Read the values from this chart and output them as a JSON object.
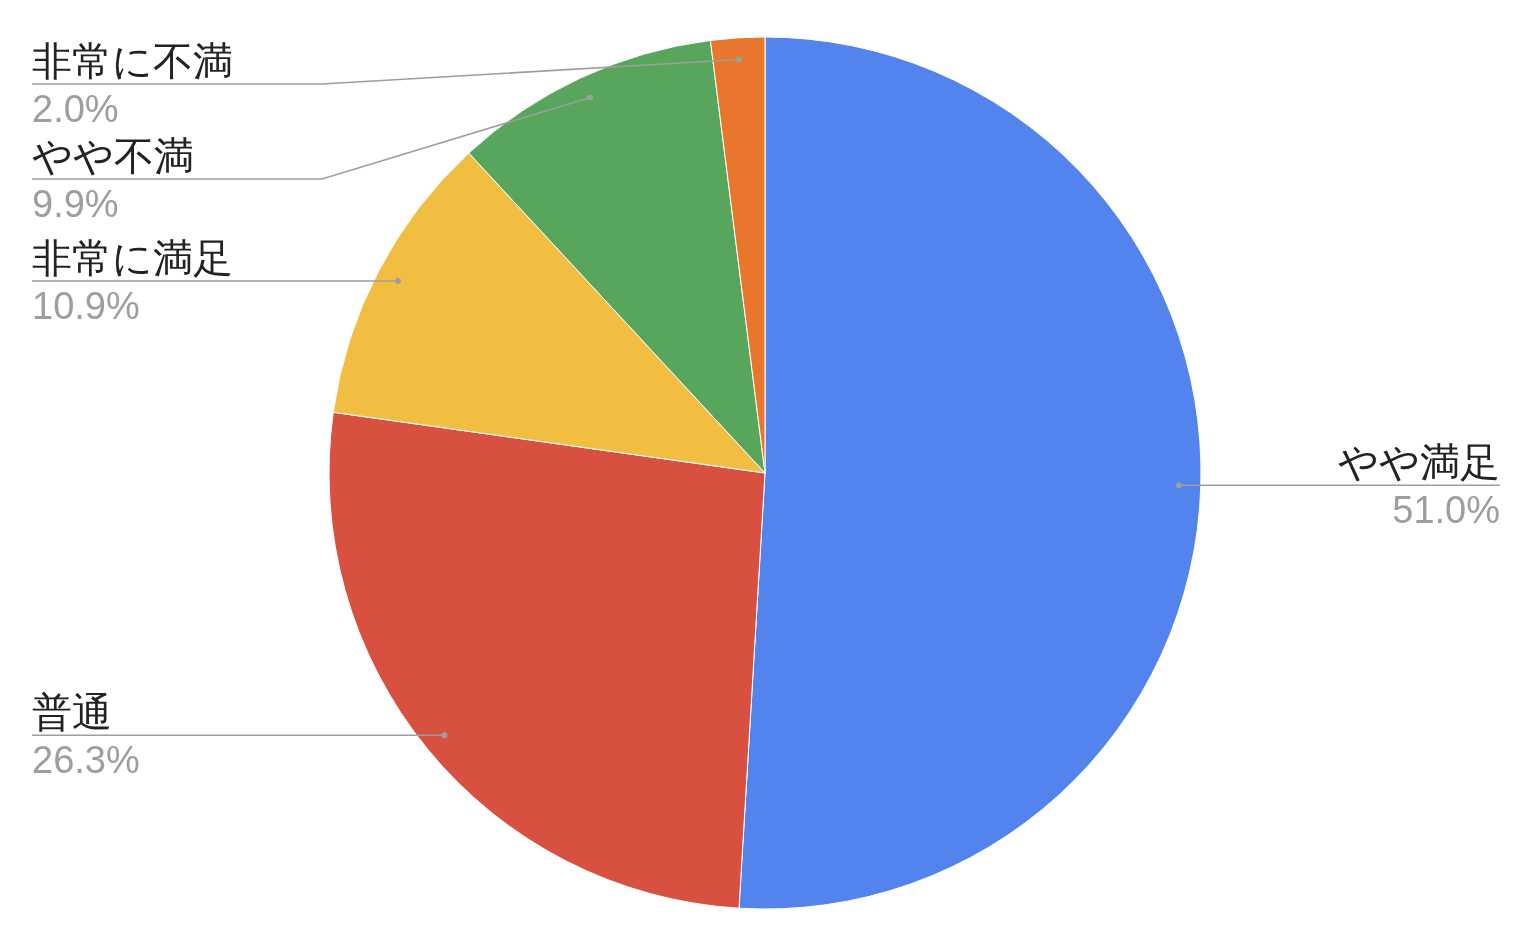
{
  "chart_data": {
    "type": "pie",
    "categories": [
      "やや満足",
      "普通",
      "非常に満足",
      "やや不満",
      "非常に不満"
    ],
    "values": [
      51.0,
      26.3,
      10.9,
      9.9,
      2.0
    ],
    "colors": [
      "#5383ec",
      "#d85040",
      "#f1be42",
      "#58a65c",
      "#e8762d"
    ],
    "value_labels": [
      "51.0%",
      "26.3%",
      "10.9%",
      "9.9%",
      "2.0%"
    ]
  }
}
